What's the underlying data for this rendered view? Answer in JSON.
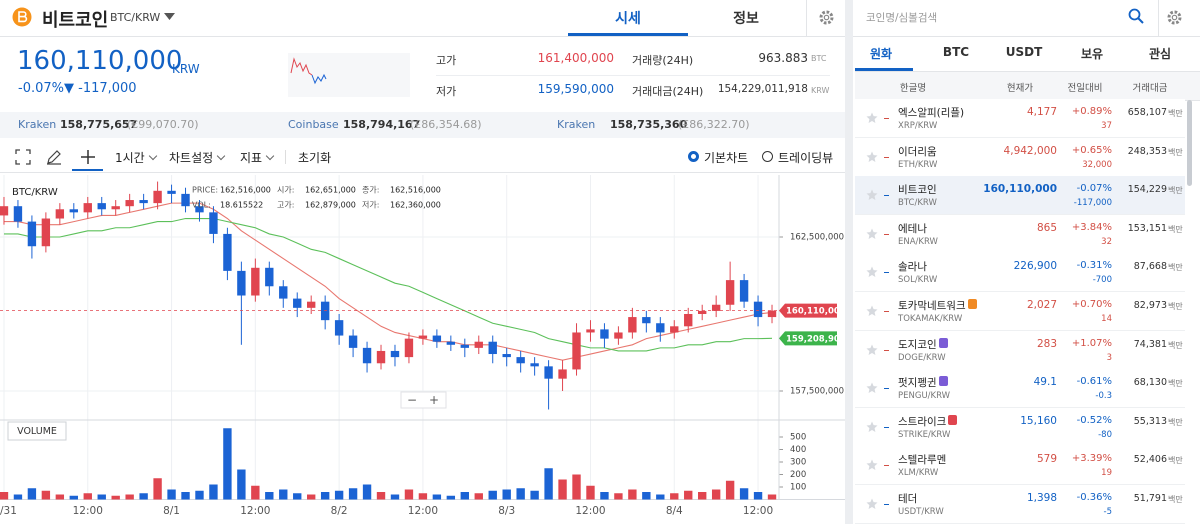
{
  "header": {
    "name": "비트코인",
    "pair": "BTC/KRW",
    "tabs": [
      "시세",
      "정보"
    ]
  },
  "price": {
    "current": "160,110,000",
    "unit": "KRW",
    "change_rate": "-0.07%",
    "change": "▼ -117,000"
  },
  "stats": [
    {
      "label": "고가",
      "value": "161,400,000"
    },
    {
      "label": "저가",
      "value": "159,590,000"
    },
    {
      "label": "거래량(24H)",
      "value": "963.883",
      "unit": "BTC"
    },
    {
      "label": "거래대금(24H)",
      "value": "154,229,011,918",
      "unit": "KRW"
    }
  ],
  "exchanges": [
    {
      "name": "Kraken",
      "price": "158,775,657",
      "fx": "(€99,070.70)"
    },
    {
      "name": "Coinbase",
      "price": "158,794,167",
      "fx": "(£86,354.68)"
    },
    {
      "name": "Kraken",
      "price": "158,735,360",
      "fx": "(£86,322.70)"
    }
  ],
  "toolbar": {
    "interval": "1시간",
    "settings": "차트설정",
    "indicator": "지표",
    "reset": "초기화",
    "modes": [
      "기본차트",
      "트레이딩뷰"
    ]
  },
  "chart_data": {
    "type": "candlestick",
    "title": "BTC/KRW",
    "info": [
      [
        {
          "label": "PRICE:",
          "value": "162,516,000"
        },
        {
          "label": "시가:",
          "value": "162,651,000"
        },
        {
          "label": "종가:",
          "value": "162,516,000"
        }
      ],
      [
        {
          "label": "VOL:",
          "value": "18.615522"
        },
        {
          "label": "고가:",
          "value": "162,879,000"
        },
        {
          "label": "저가:",
          "value": "162,360,000"
        }
      ]
    ],
    "categories": [
      "/31",
      null,
      null,
      null,
      null,
      null,
      "12:00",
      null,
      null,
      null,
      null,
      null,
      "8/1",
      null,
      null,
      null,
      null,
      null,
      "12:00",
      null,
      null,
      null,
      null,
      null,
      "8/2",
      null,
      null,
      null,
      null,
      null,
      "12:00",
      null,
      null,
      null,
      null,
      null,
      "8/3",
      null,
      null,
      null,
      null,
      null,
      "12:00",
      null,
      null,
      null,
      null,
      null,
      "8/4",
      null,
      null,
      null,
      null,
      null,
      "12:00",
      null
    ],
    "ohlc": [
      [
        163200000,
        163800000,
        162900000,
        163500000
      ],
      [
        163500000,
        163700000,
        162800000,
        163000000
      ],
      [
        163000000,
        163200000,
        161800000,
        162200000
      ],
      [
        162200000,
        163300000,
        162000000,
        163100000
      ],
      [
        163100000,
        163600000,
        162900000,
        163400000
      ],
      [
        163400000,
        163600000,
        163100000,
        163300000
      ],
      [
        163300000,
        163800000,
        163100000,
        163600000
      ],
      [
        163600000,
        163800000,
        163200000,
        163400000
      ],
      [
        163400000,
        163700000,
        163200000,
        163500000
      ],
      [
        163500000,
        163900000,
        163300000,
        163700000
      ],
      [
        163700000,
        163900000,
        163400000,
        163600000
      ],
      [
        163600000,
        164300000,
        163400000,
        164000000
      ],
      [
        164000000,
        164200000,
        163600000,
        163900000
      ],
      [
        163900000,
        164100000,
        163300000,
        163500000
      ],
      [
        163500000,
        163700000,
        163000000,
        163300000
      ],
      [
        163300000,
        163500000,
        162300000,
        162600000
      ],
      [
        162600000,
        162800000,
        161100000,
        161400000
      ],
      [
        161400000,
        161700000,
        159000000,
        160600000
      ],
      [
        160600000,
        161800000,
        160400000,
        161500000
      ],
      [
        161500000,
        161700000,
        160600000,
        160900000
      ],
      [
        160900000,
        161100000,
        160200000,
        160500000
      ],
      [
        160500000,
        160700000,
        159900000,
        160200000
      ],
      [
        160200000,
        160600000,
        160000000,
        160400000
      ],
      [
        160400000,
        160600000,
        159500000,
        159800000
      ],
      [
        159800000,
        160000000,
        159000000,
        159300000
      ],
      [
        159300000,
        159500000,
        158600000,
        158900000
      ],
      [
        158900000,
        159100000,
        158100000,
        158400000
      ],
      [
        158400000,
        159000000,
        158200000,
        158800000
      ],
      [
        158800000,
        159000000,
        158300000,
        158600000
      ],
      [
        158600000,
        159400000,
        158400000,
        159200000
      ],
      [
        159200000,
        159500000,
        159000000,
        159300000
      ],
      [
        159300000,
        159500000,
        158900000,
        159100000
      ],
      [
        159100000,
        159300000,
        158800000,
        159000000
      ],
      [
        159000000,
        159200000,
        158600000,
        158900000
      ],
      [
        158900000,
        159300000,
        158700000,
        159100000
      ],
      [
        159100000,
        159300000,
        158400000,
        158700000
      ],
      [
        158700000,
        158900000,
        158300000,
        158600000
      ],
      [
        158600000,
        158800000,
        158100000,
        158400000
      ],
      [
        158400000,
        158600000,
        158000000,
        158300000
      ],
      [
        158300000,
        158500000,
        156900000,
        157900000
      ],
      [
        157900000,
        158500000,
        157500000,
        158200000
      ],
      [
        158200000,
        159700000,
        158000000,
        159400000
      ],
      [
        159400000,
        159800000,
        159100000,
        159500000
      ],
      [
        159500000,
        159700000,
        158900000,
        159200000
      ],
      [
        159200000,
        159600000,
        159000000,
        159400000
      ],
      [
        159400000,
        160200000,
        159200000,
        159900000
      ],
      [
        159900000,
        160100000,
        159400000,
        159700000
      ],
      [
        159700000,
        159900000,
        159100000,
        159400000
      ],
      [
        159400000,
        159800000,
        159200000,
        159600000
      ],
      [
        159600000,
        160200000,
        159400000,
        160000000
      ],
      [
        160000000,
        160300000,
        159800000,
        160100000
      ],
      [
        160100000,
        160600000,
        159900000,
        160300000
      ],
      [
        160300000,
        161700000,
        160100000,
        161100000
      ],
      [
        161100000,
        161300000,
        160200000,
        160400000
      ],
      [
        160400000,
        160600000,
        159600000,
        159900000
      ],
      [
        159900000,
        160300000,
        159700000,
        160110000
      ]
    ],
    "ma": [
      {
        "color": "#e8776f",
        "values": [
          163000000,
          163000000,
          162900000,
          162900000,
          162900000,
          163000000,
          163100000,
          163200000,
          163200000,
          163300000,
          163400000,
          163500000,
          163600000,
          163600000,
          163600000,
          163400000,
          163100000,
          162700000,
          162400000,
          162100000,
          161800000,
          161500000,
          161200000,
          160900000,
          160500000,
          160200000,
          159900000,
          159600000,
          159400000,
          159300000,
          159200000,
          159100000,
          159100000,
          159000000,
          159000000,
          159000000,
          158900000,
          158800000,
          158700000,
          158600000,
          158500000,
          158600000,
          158700000,
          158800000,
          158900000,
          159000000,
          159200000,
          159300000,
          159400000,
          159500000,
          159600000,
          159700000,
          159800000,
          159900000,
          160000000,
          160050000
        ]
      },
      {
        "color": "#5cc05a",
        "values": [
          162600000,
          162600000,
          162500000,
          162500000,
          162500000,
          162600000,
          162700000,
          162700000,
          162800000,
          162800000,
          162900000,
          163000000,
          163000000,
          163100000,
          163100000,
          163100000,
          163000000,
          162900000,
          162800000,
          162600000,
          162500000,
          162300000,
          162100000,
          162000000,
          161800000,
          161600000,
          161400000,
          161200000,
          161000000,
          160900000,
          160700000,
          160500000,
          160300000,
          160100000,
          159900000,
          159700000,
          159600000,
          159500000,
          159400000,
          159200000,
          159100000,
          159000000,
          158900000,
          158900000,
          158800000,
          158800000,
          158800000,
          158900000,
          158900000,
          159000000,
          159000000,
          159100000,
          159100000,
          159200000,
          159200000,
          159208900
        ]
      }
    ],
    "price_tags": [
      {
        "value": 160110000,
        "label": "160,110,000",
        "color": "#e0454f"
      },
      {
        "value": 159208900,
        "label": "159,208,900",
        "color": "#3cb44b"
      }
    ],
    "ylim": [
      156558000,
      164513000
    ],
    "yticks": [
      {
        "value": 162500000,
        "label": "162,500,000"
      },
      {
        "value": 157500000,
        "label": "157,500,000"
      }
    ],
    "up_color": "#e0454f",
    "down_color": "#1b63d4",
    "zoom_buttons": [
      "−",
      "+"
    ],
    "volume": {
      "title": "VOLUME",
      "values": [
        60,
        40,
        90,
        70,
        40,
        30,
        50,
        40,
        30,
        40,
        50,
        170,
        80,
        60,
        70,
        120,
        570,
        240,
        110,
        60,
        80,
        50,
        40,
        60,
        70,
        90,
        120,
        60,
        40,
        80,
        50,
        40,
        30,
        60,
        50,
        70,
        80,
        90,
        70,
        250,
        160,
        200,
        110,
        60,
        50,
        80,
        60,
        40,
        50,
        70,
        60,
        80,
        150,
        90,
        60,
        40
      ],
      "ylim": [
        0,
        636
      ],
      "yticks": [
        100,
        200,
        300,
        400,
        500
      ]
    }
  },
  "market": {
    "search": "코인명/심볼검색",
    "tabs": [
      "원화",
      "BTC",
      "USDT",
      "보유",
      "관심"
    ],
    "columns": [
      "한글명",
      "현재가",
      "전일대비",
      "거래대금"
    ],
    "volume_unit": "백만",
    "rows": [
      {
        "name": "엑스알피(리플)",
        "symbol": "XRP/KRW",
        "price": "4,177",
        "rate": "+0.89%",
        "change": "37",
        "volume": "658,107"
      },
      {
        "name": "이더리움",
        "symbol": "ETH/KRW",
        "price": "4,942,000",
        "rate": "+0.65%",
        "change": "32,000",
        "volume": "248,353"
      },
      {
        "name": "비트코인",
        "symbol": "BTC/KRW",
        "price": "160,110,000",
        "rate": "-0.07%",
        "change": "-117,000",
        "volume": "154,229"
      },
      {
        "name": "에테나",
        "symbol": "ENA/KRW",
        "price": "865",
        "rate": "+3.84%",
        "change": "32",
        "volume": "153,151"
      },
      {
        "name": "솔라나",
        "symbol": "SOL/KRW",
        "price": "226,900",
        "rate": "-0.31%",
        "change": "-700",
        "volume": "87,668"
      },
      {
        "name": "토카막네트워크",
        "symbol": "TOKAMAK/KRW",
        "price": "2,027",
        "rate": "+0.70%",
        "change": "14",
        "volume": "82,973",
        "badge": "#f08a24"
      },
      {
        "name": "도지코인",
        "symbol": "DOGE/KRW",
        "price": "283",
        "rate": "+1.07%",
        "change": "3",
        "volume": "74,381",
        "badge": "#7b5cd6"
      },
      {
        "name": "펏지펭귄",
        "symbol": "PENGU/KRW",
        "price": "49.1",
        "rate": "-0.61%",
        "change": "-0.3",
        "volume": "68,130",
        "badge": "#7b5cd6"
      },
      {
        "name": "스트라이크",
        "symbol": "STRIKE/KRW",
        "price": "15,160",
        "rate": "-0.52%",
        "change": "-80",
        "volume": "55,313",
        "badge": "#e0454f"
      },
      {
        "name": "스텔라루멘",
        "symbol": "XLM/KRW",
        "price": "579",
        "rate": "+3.39%",
        "change": "19",
        "volume": "52,406"
      },
      {
        "name": "테더",
        "symbol": "USDT/KRW",
        "price": "1,398",
        "rate": "-0.36%",
        "change": "-5",
        "volume": "51,791"
      }
    ]
  }
}
